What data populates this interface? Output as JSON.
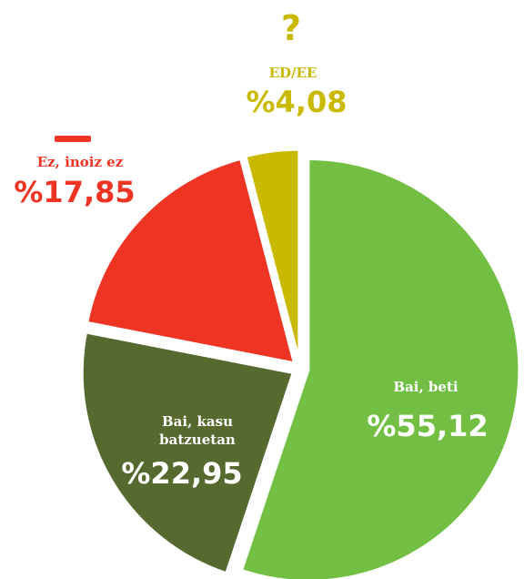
{
  "chart_data": {
    "type": "pie",
    "categories": [
      "Bai, beti",
      "Bai, kasu batzuetan",
      "Ez, inoiz ez",
      "ED/EE"
    ],
    "values": [
      55.12,
      22.95,
      17.85,
      4.08
    ],
    "value_labels": [
      "%55,12",
      "%22,95",
      "%17,85",
      "%4,08"
    ],
    "colors": [
      "#72bf44",
      "#566a30",
      "#ee3524",
      "#c9b900"
    ]
  }
}
